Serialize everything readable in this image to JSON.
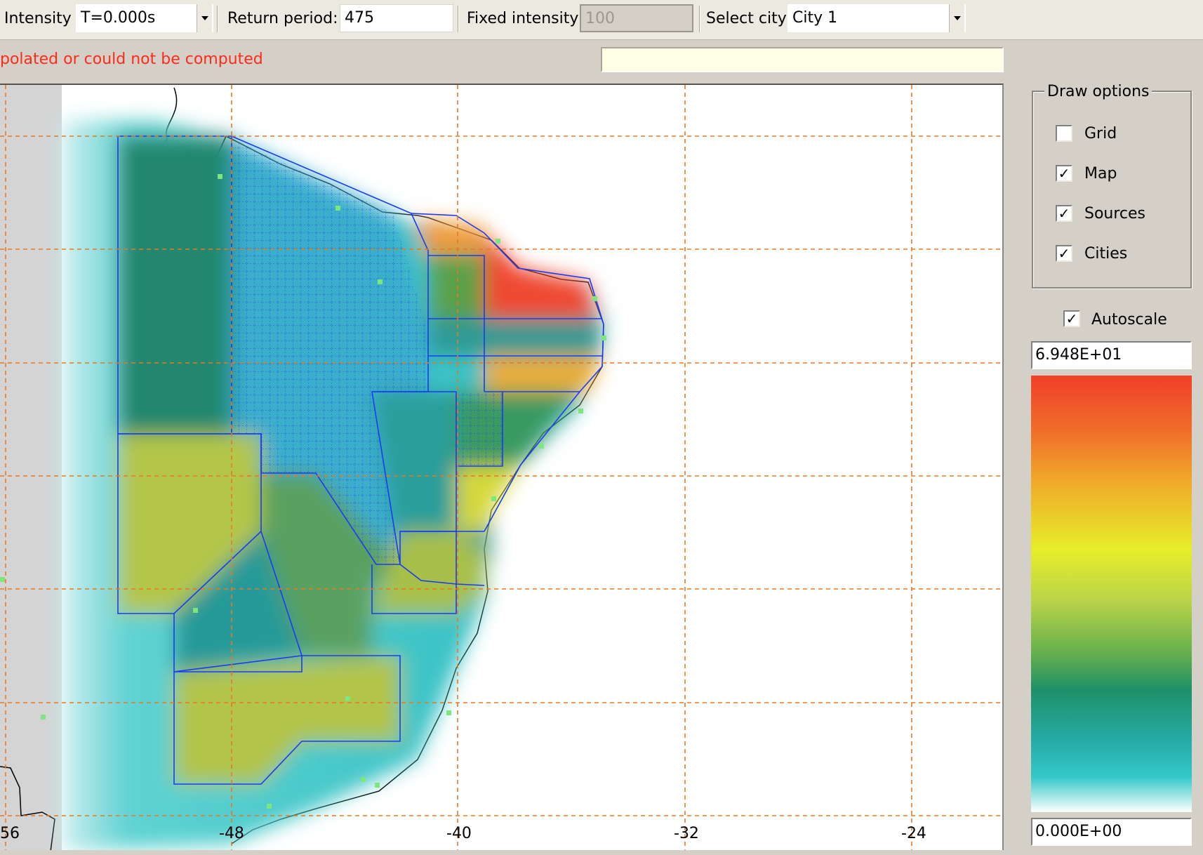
{
  "toolbar": {
    "intensity_label": "Intensity",
    "intensity_value": "T=0.000s",
    "return_period_label": "Return period:",
    "return_period_value": "475",
    "fixed_intensity_label": "Fixed intensity",
    "fixed_intensity_value": "100",
    "select_city_label": "Select city",
    "select_city_value": "City 1"
  },
  "status": {
    "message": "polated or could not be computed"
  },
  "map": {
    "x_ticks": [
      "56",
      "-48",
      "-40",
      "-32",
      "-24"
    ],
    "gridline_color": "#e87822",
    "region_border_color": "#1a3cf0",
    "city_marker_color": "#7ce87c"
  },
  "draw_options": {
    "title": "Draw options",
    "items": [
      {
        "label": "Grid",
        "checked": false
      },
      {
        "label": "Map",
        "checked": true
      },
      {
        "label": "Sources",
        "checked": true
      },
      {
        "label": "Cities",
        "checked": true
      }
    ]
  },
  "scale": {
    "autoscale_label": "Autoscale",
    "autoscale_checked": true,
    "max_value": "6.948E+01",
    "min_value": "0.000E+00",
    "colors": [
      "#f0402a",
      "#f0a82a",
      "#e6ee2a",
      "#62ae4e",
      "#1e9068",
      "#34c8c8",
      "#ffffff"
    ]
  }
}
